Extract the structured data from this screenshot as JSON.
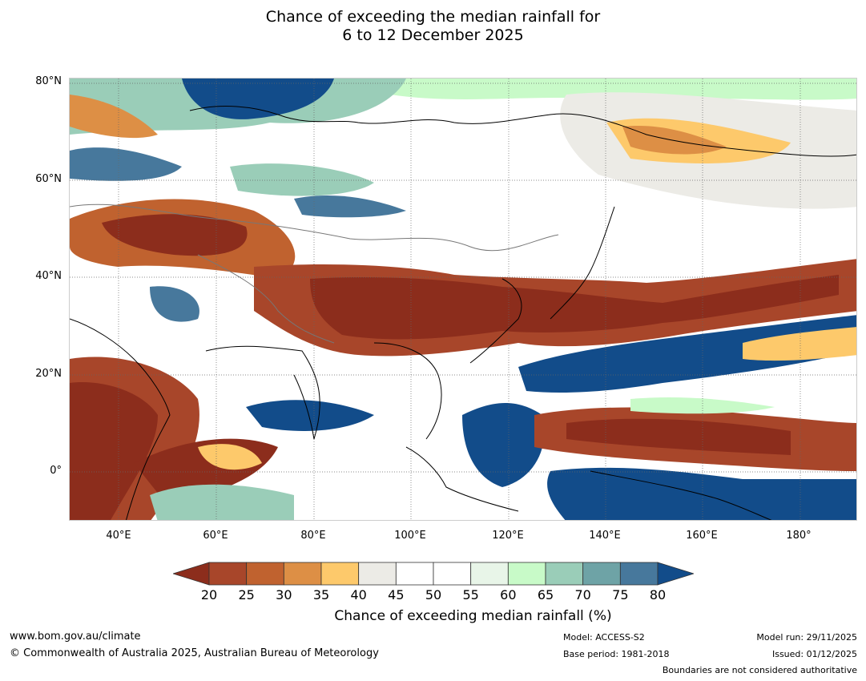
{
  "title": {
    "line1": "Chance of exceeding the median rainfall for",
    "line2": "6 to 12 December 2025"
  },
  "map": {
    "lat_labels": [
      "80°N",
      "60°N",
      "40°N",
      "20°N",
      "0°"
    ],
    "lon_labels": [
      "40°E",
      "60°E",
      "80°E",
      "100°E",
      "120°E",
      "140°E",
      "160°E",
      "180°"
    ]
  },
  "colorbar": {
    "ticks": [
      "20",
      "25",
      "30",
      "35",
      "40",
      "45",
      "50",
      "55",
      "60",
      "65",
      "70",
      "75",
      "80"
    ],
    "colors": [
      "#8c2d1c",
      "#a8462a",
      "#c0622f",
      "#dd8f45",
      "#fdc96b",
      "#ecebe6",
      "#ffffff",
      "#ffffff",
      "#e8f5e8",
      "#c8fac8",
      "#9acdb8",
      "#6ea3a6",
      "#47789c",
      "#124c8a"
    ],
    "label": "Chance of exceeding median rainfall (%)"
  },
  "footer": {
    "url": "www.bom.gov.au/climate",
    "copyright": "© Commonwealth of Australia 2025, Australian Bureau of Meteorology",
    "model": "Model: ACCESS-S2",
    "base_period": "Base period: 1981-2018",
    "model_run": "Model run: 29/11/2025",
    "issued": "Issued: 01/12/2025",
    "disclaimer": "Boundaries are not considered authoritative"
  }
}
